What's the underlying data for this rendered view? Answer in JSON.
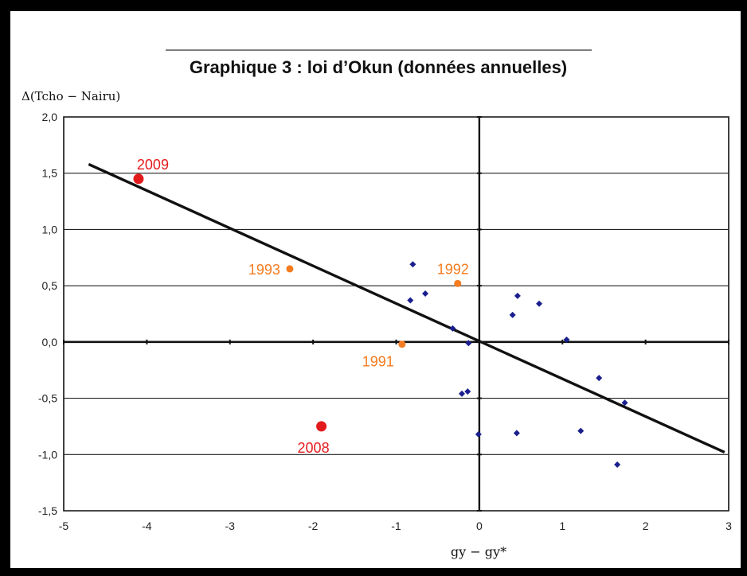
{
  "chart_data": {
    "type": "scatter",
    "title": "Graphique 3 : loi d’Okun (données annuelles)",
    "xlabel": "gy − gy*",
    "ylabel": "Δ(Tcho − Nairu)",
    "xlim": [
      -5,
      3
    ],
    "ylim": [
      -1.5,
      2.0
    ],
    "x_ticks": [
      -5,
      -4,
      -3,
      -2,
      -1,
      0,
      1,
      2,
      3
    ],
    "x_tick_labels": [
      "-5",
      "-4",
      "-3",
      "-2",
      "-1",
      "0",
      "1",
      "2",
      "3"
    ],
    "y_ticks": [
      2.0,
      1.5,
      1.0,
      0.5,
      0.0,
      -0.5,
      -1.0,
      -1.5
    ],
    "y_tick_labels": [
      "2,0",
      "1,5",
      "1,0",
      "0,5",
      "0,0",
      "-0,5",
      "-1,0",
      "-1,5"
    ],
    "grid": "horizontal",
    "colors": {
      "other": "#1a1f8f",
      "highlight_red": "#e31a1c",
      "highlight_orange": "#f57c20",
      "line": "#111111"
    },
    "series": [
      {
        "color": "#1a1f8f",
        "marker_size": "small",
        "points": [
          [
            -0.8,
            0.69
          ],
          [
            -0.83,
            0.37
          ],
          [
            -0.65,
            0.43
          ],
          [
            -0.32,
            0.12
          ],
          [
            -0.13,
            -0.01
          ],
          [
            -0.21,
            -0.46
          ],
          [
            -0.14,
            -0.44
          ],
          [
            -0.01,
            -0.82
          ],
          [
            0.46,
            0.41
          ],
          [
            0.4,
            0.24
          ],
          [
            0.72,
            0.34
          ],
          [
            1.05,
            0.02
          ],
          [
            1.44,
            -0.32
          ],
          [
            1.75,
            -0.54
          ],
          [
            1.22,
            -0.79
          ],
          [
            0.45,
            -0.81
          ],
          [
            1.66,
            -1.09
          ]
        ]
      },
      {
        "color": "#e31a1c",
        "marker_size": "large",
        "points": [
          [
            -4.1,
            1.45
          ],
          [
            -1.9,
            -0.75
          ]
        ],
        "labels": [
          "2009",
          "2008"
        ]
      },
      {
        "color": "#f57c20",
        "marker_size": "medium",
        "points": [
          [
            -2.28,
            0.65
          ],
          [
            -0.26,
            0.52
          ],
          [
            -0.93,
            -0.02
          ]
        ],
        "labels": [
          "1993",
          "1992",
          "1991"
        ]
      }
    ],
    "trendline": {
      "x": [
        -4.7,
        2.95
      ],
      "y": [
        1.58,
        -0.98
      ]
    }
  }
}
